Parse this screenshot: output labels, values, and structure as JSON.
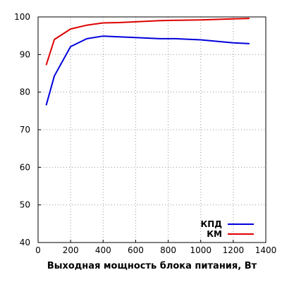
{
  "chart_data": {
    "type": "line",
    "title": "",
    "xlabel": "Выходная мощность блока питания, Вт",
    "ylabel": "",
    "xlim": [
      0,
      1400
    ],
    "ylim": [
      40,
      100
    ],
    "x_ticks": [
      0,
      200,
      400,
      600,
      800,
      1000,
      1200,
      1400
    ],
    "y_ticks": [
      40,
      50,
      60,
      70,
      80,
      90,
      100
    ],
    "grid": true,
    "legend_position": "bottom-right",
    "series": [
      {
        "name": "КПД",
        "color": "#0000dd",
        "x": [
          50,
          100,
          200,
          300,
          400,
          500,
          750,
          850,
          1000,
          1200,
          1300
        ],
        "y": [
          76.5,
          84.3,
          92.1,
          94.2,
          94.9,
          94.7,
          94.2,
          94.2,
          93.9,
          93.1,
          92.9
        ]
      },
      {
        "name": "КМ",
        "color": "#dd0000",
        "x": [
          50,
          100,
          200,
          300,
          400,
          500,
          750,
          850,
          1000,
          1200,
          1300
        ],
        "y": [
          87.2,
          94.0,
          96.8,
          97.8,
          98.4,
          98.5,
          99.0,
          99.1,
          99.2,
          99.5,
          99.6
        ]
      }
    ]
  }
}
